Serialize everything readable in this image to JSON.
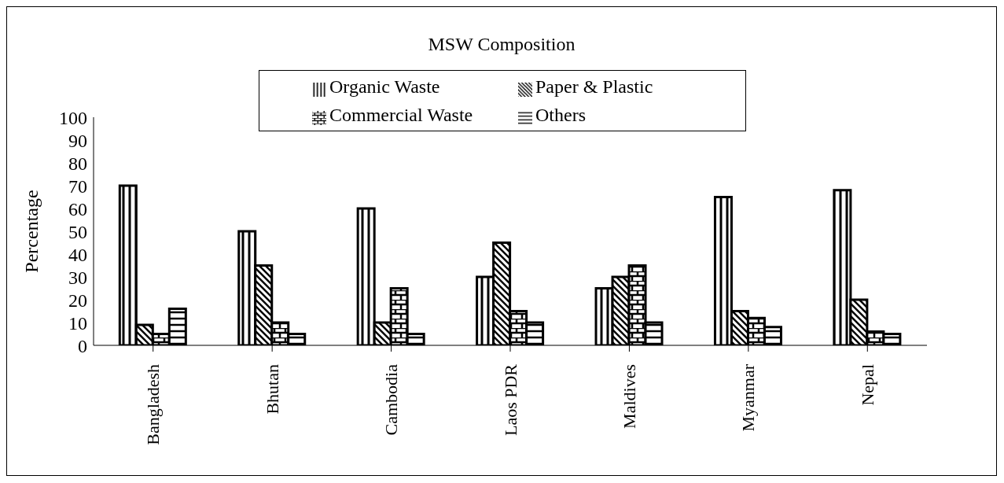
{
  "chart_data": {
    "type": "bar",
    "title": "MSW Composition",
    "ylabel": "Percentage",
    "categories": [
      "Bangladesh",
      "Bhutan",
      "Cambodia",
      "Laos PDR",
      "Maldives",
      "Myanmar",
      "Nepal"
    ],
    "series": [
      {
        "name": "Organic Waste",
        "color": "#000000",
        "values": [
          70,
          50,
          60,
          30,
          25,
          65,
          68
        ]
      },
      {
        "name": "Paper & Plastic",
        "color": "#000000",
        "values": [
          9,
          35,
          10,
          45,
          30,
          15,
          20
        ]
      },
      {
        "name": "Commercial Waste",
        "color": "#000000",
        "values": [
          5,
          10,
          25,
          15,
          35,
          12,
          6
        ]
      },
      {
        "name": "Others",
        "color": "#000000",
        "values": [
          16,
          5,
          5,
          10,
          10,
          8,
          5
        ]
      }
    ],
    "ylim": [
      0,
      100
    ],
    "yticks": [
      0,
      10,
      20,
      30,
      40,
      50,
      60,
      70,
      80,
      90,
      100
    ],
    "grid": false,
    "legend": "top"
  }
}
